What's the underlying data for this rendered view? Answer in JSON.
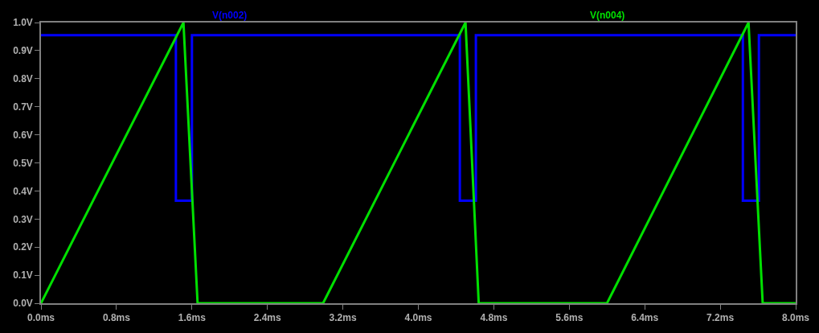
{
  "chart_data": {
    "type": "line",
    "xlim": [
      0,
      8
    ],
    "ylim": [
      0,
      1
    ],
    "xticks": [
      {
        "value": 0,
        "label": "0.0ms"
      },
      {
        "value": 0.8,
        "label": "0.8ms"
      },
      {
        "value": 1.6,
        "label": "1.6ms"
      },
      {
        "value": 2.4,
        "label": "2.4ms"
      },
      {
        "value": 3.2,
        "label": "3.2ms"
      },
      {
        "value": 4.0,
        "label": "4.0ms"
      },
      {
        "value": 4.8,
        "label": "4.8ms"
      },
      {
        "value": 5.6,
        "label": "5.6ms"
      },
      {
        "value": 6.4,
        "label": "6.4ms"
      },
      {
        "value": 7.2,
        "label": "7.2ms"
      },
      {
        "value": 8.0,
        "label": "8.0ms"
      }
    ],
    "yticks": [
      {
        "value": 0,
        "label": "0.0V"
      },
      {
        "value": 0.1,
        "label": "0.1V"
      },
      {
        "value": 0.2,
        "label": "0.2V"
      },
      {
        "value": 0.3,
        "label": "0.3V"
      },
      {
        "value": 0.4,
        "label": "0.4V"
      },
      {
        "value": 0.5,
        "label": "0.5V"
      },
      {
        "value": 0.6,
        "label": "0.6V"
      },
      {
        "value": 0.7,
        "label": "0.7V"
      },
      {
        "value": 0.8,
        "label": "0.8V"
      },
      {
        "value": 0.9,
        "label": "0.9V"
      },
      {
        "value": 1.0,
        "label": "1.0V"
      }
    ],
    "grid": false,
    "legend": false,
    "marker": "none",
    "line_style": "solid",
    "series": [
      {
        "name": "V(n002)",
        "color": "#0000ff",
        "x": [
          0,
          1.43,
          1.43,
          1.6,
          1.6,
          4.44,
          4.44,
          4.61,
          4.61,
          7.44,
          7.44,
          7.61,
          7.61,
          8.0
        ],
        "values": [
          0.955,
          0.955,
          0.365,
          0.365,
          0.955,
          0.955,
          0.365,
          0.365,
          0.955,
          0.955,
          0.365,
          0.365,
          0.955,
          0.955
        ]
      },
      {
        "name": "V(n004)",
        "color": "#00e000",
        "x": [
          0,
          1.51,
          1.66,
          2.99,
          4.5,
          4.64,
          6.0,
          7.5,
          7.65,
          8.0
        ],
        "values": [
          0,
          1.0,
          0,
          0,
          1.0,
          0,
          0,
          1.0,
          0,
          0
        ]
      }
    ]
  }
}
